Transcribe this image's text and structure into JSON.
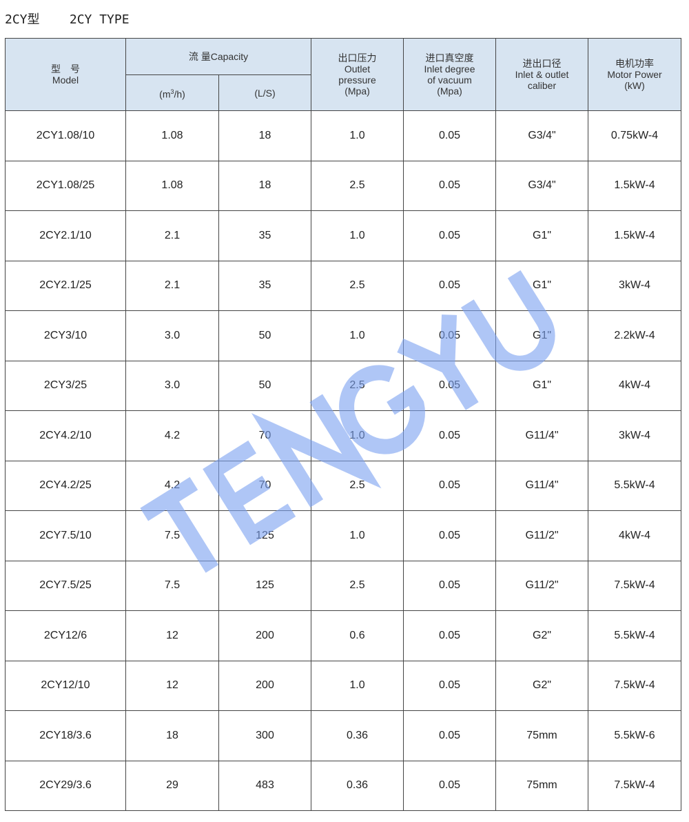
{
  "title": "2CY型    2CY TYPE",
  "watermark": {
    "text": "TENGYU",
    "color": "#7aa0f0"
  },
  "colors": {
    "header_bg": "#d7e4f1",
    "border": "#444444"
  },
  "headers": {
    "model": [
      "型　号",
      "Model"
    ],
    "capacity": "流 量Capacity",
    "cap_m3h_pre": "(m",
    "cap_m3h_sup": "3",
    "cap_m3h_post": "/h)",
    "cap_ls": "(L/S)",
    "outlet": [
      "出口压力",
      "Outlet",
      "pressure",
      "(Mpa)"
    ],
    "vacuum": [
      "进口真空度",
      "Inlet degree",
      "of vacuum",
      "(Mpa)"
    ],
    "caliber": [
      "进出口径",
      "Inlet & outlet",
      "caliber"
    ],
    "power": [
      "电机功率",
      "Motor Power",
      "(kW)"
    ]
  },
  "rows": [
    [
      "2CY1.08/10",
      "1.08",
      "18",
      "1.0",
      "0.05",
      "G3/4\"",
      "0.75kW-4"
    ],
    [
      "2CY1.08/25",
      "1.08",
      "18",
      "2.5",
      "0.05",
      "G3/4\"",
      "1.5kW-4"
    ],
    [
      "2CY2.1/10",
      "2.1",
      "35",
      "1.0",
      "0.05",
      "G1\"",
      "1.5kW-4"
    ],
    [
      "2CY2.1/25",
      "2.1",
      "35",
      "2.5",
      "0.05",
      "G1\"",
      "3kW-4"
    ],
    [
      "2CY3/10",
      "3.0",
      "50",
      "1.0",
      "0.05",
      "G1\"",
      "2.2kW-4"
    ],
    [
      "2CY3/25",
      "3.0",
      "50",
      "2.5",
      "0.05",
      "G1\"",
      "4kW-4"
    ],
    [
      "2CY4.2/10",
      "4.2",
      "70",
      "1.0",
      "0.05",
      "G11/4\"",
      "3kW-4"
    ],
    [
      "2CY4.2/25",
      "4.2",
      "70",
      "2.5",
      "0.05",
      "G11/4\"",
      "5.5kW-4"
    ],
    [
      "2CY7.5/10",
      "7.5",
      "125",
      "1.0",
      "0.05",
      "G11/2\"",
      "4kW-4"
    ],
    [
      "2CY7.5/25",
      "7.5",
      "125",
      "2.5",
      "0.05",
      "G11/2\"",
      "7.5kW-4"
    ],
    [
      "2CY12/6",
      "12",
      "200",
      "0.6",
      "0.05",
      "G2\"",
      "5.5kW-4"
    ],
    [
      "2CY12/10",
      "12",
      "200",
      "1.0",
      "0.05",
      "G2\"",
      "7.5kW-4"
    ],
    [
      "2CY18/3.6",
      "18",
      "300",
      "0.36",
      "0.05",
      "75mm",
      "5.5kW-6"
    ],
    [
      "2CY29/3.6",
      "29",
      "483",
      "0.36",
      "0.05",
      "75mm",
      "7.5kW-4"
    ]
  ]
}
